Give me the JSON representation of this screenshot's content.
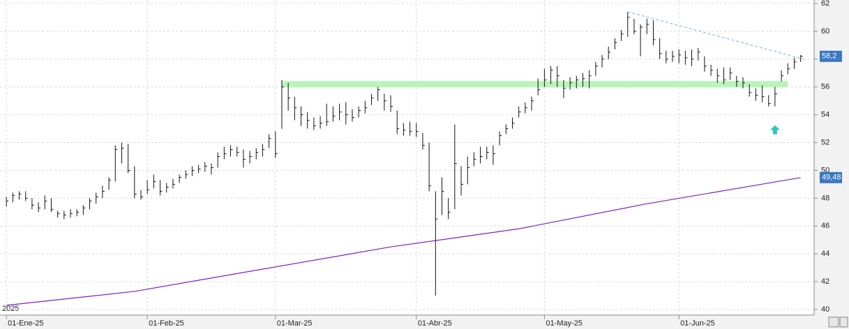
{
  "chart_data": {
    "type": "ohlc",
    "year_label": "2025",
    "xlim": [
      -1,
      126
    ],
    "xticks": [
      {
        "value": 0,
        "label": "01-Ene-25"
      },
      {
        "value": 22,
        "label": "01-Feb-25"
      },
      {
        "value": 42,
        "label": "01-Mar-25"
      },
      {
        "value": 64,
        "label": "01-Abr-25"
      },
      {
        "value": 84,
        "label": "01-May-25"
      },
      {
        "value": 105,
        "label": "01-Jun-25"
      }
    ],
    "ylim": [
      40,
      62
    ],
    "yticks": [
      40,
      42,
      44,
      46,
      48,
      50,
      52,
      54,
      56,
      58,
      60,
      62
    ],
    "grid": true,
    "color": "#111111",
    "high": [
      48.1,
      48.4,
      48.5,
      48.5,
      48.0,
      47.7,
      48.2,
      48.0,
      47.1,
      47.1,
      47.2,
      47.2,
      47.5,
      48.0,
      48.4,
      48.9,
      49.5,
      51.8,
      52.0,
      51.9,
      50.3,
      48.6,
      49.3,
      49.7,
      49.3,
      49.1,
      49.4,
      49.7,
      50.0,
      50.3,
      50.4,
      50.6,
      50.5,
      51.3,
      51.7,
      51.8,
      51.7,
      51.5,
      51.4,
      51.6,
      51.9,
      52.6,
      52.8,
      56.5,
      56.3,
      55.3,
      54.6,
      54.2,
      53.8,
      53.9,
      54.8,
      54.6,
      54.8,
      54.9,
      54.4,
      54.6,
      55.0,
      55.5,
      56.0,
      55.5,
      55.4,
      54.3,
      53.4,
      53.5,
      53.4,
      52.7,
      52.0,
      48.5,
      49.5,
      48.0,
      53.3,
      50.3,
      51.0,
      51.3,
      51.7,
      51.7,
      51.8,
      52.8,
      53.3,
      53.8,
      54.6,
      54.9,
      55.3,
      56.6,
      57.3,
      57.5,
      57.5,
      56.5,
      56.7,
      56.8,
      57.0,
      57.2,
      57.8,
      58.3,
      58.9,
      59.5,
      60.1,
      61.4,
      60.9,
      60.5,
      60.9,
      60.8,
      59.5,
      58.6,
      58.6,
      58.7,
      58.6,
      58.7,
      58.8,
      58.2,
      57.6,
      57.3,
      57.4,
      57.4,
      56.8,
      56.7,
      56.2,
      55.9,
      56.1,
      55.4,
      56.0,
      57.2,
      57.7,
      58.1,
      58.3
    ],
    "low": [
      47.4,
      47.7,
      47.9,
      47.8,
      47.2,
      47.0,
      47.2,
      47.0,
      46.6,
      46.5,
      46.6,
      46.7,
      46.8,
      47.2,
      47.6,
      48.0,
      48.6,
      49.2,
      50.5,
      49.8,
      48.0,
      47.9,
      48.3,
      48.7,
      48.2,
      48.4,
      48.7,
      49.1,
      49.4,
      49.6,
      49.8,
      49.9,
      49.7,
      50.2,
      50.8,
      51.0,
      51.0,
      50.2,
      50.5,
      50.8,
      51.0,
      51.6,
      50.9,
      53.0,
      54.3,
      53.6,
      53.2,
      53.0,
      52.9,
      53.0,
      53.2,
      53.5,
      53.6,
      53.3,
      53.5,
      53.8,
      54.1,
      54.7,
      55.0,
      54.3,
      54.2,
      52.6,
      52.5,
      52.5,
      52.4,
      51.5,
      48.5,
      41.0,
      46.8,
      46.5,
      47.2,
      48.2,
      49.0,
      50.3,
      50.5,
      50.8,
      50.4,
      51.8,
      52.6,
      53.0,
      53.8,
      54.1,
      54.3,
      55.4,
      56.0,
      56.2,
      56.0,
      55.2,
      55.8,
      55.9,
      56.0,
      55.9,
      56.8,
      57.4,
      58.0,
      58.7,
      59.3,
      59.6,
      59.8,
      58.2,
      59.8,
      59.0,
      58.0,
      57.7,
      57.8,
      57.7,
      57.6,
      57.5,
      57.9,
      57.1,
      56.8,
      56.3,
      56.2,
      56.5,
      56.0,
      55.9,
      55.3,
      55.0,
      54.9,
      54.6,
      54.6,
      56.4,
      56.9,
      57.3,
      57.8
    ],
    "close": [
      47.8,
      48.2,
      48.3,
      48.0,
      47.5,
      47.3,
      47.8,
      47.2,
      46.9,
      46.8,
      46.9,
      47.0,
      47.3,
      47.8,
      48.1,
      48.5,
      49.3,
      51.5,
      51.6,
      50.0,
      48.3,
      48.1,
      48.6,
      49.2,
      48.5,
      48.8,
      49.0,
      49.5,
      49.7,
      50.0,
      50.1,
      50.3,
      50.2,
      51.0,
      51.2,
      51.5,
      51.3,
      50.8,
      51.0,
      51.3,
      51.5,
      52.3,
      51.2,
      56.0,
      55.2,
      54.5,
      54.0,
      53.6,
      53.2,
      53.4,
      53.5,
      53.9,
      54.2,
      54.0,
      53.8,
      54.3,
      54.5,
      55.2,
      55.8,
      55.0,
      54.6,
      53.0,
      52.9,
      52.8,
      52.8,
      51.8,
      48.9,
      46.5,
      48.5,
      47.0,
      50.5,
      49.0,
      50.2,
      50.8,
      51.0,
      51.3,
      51.2,
      52.5,
      53.0,
      53.4,
      54.2,
      54.5,
      55.0,
      55.8,
      56.5,
      57.2,
      56.8,
      55.9,
      56.3,
      56.5,
      56.6,
      56.8,
      57.5,
      58.0,
      58.5,
      59.2,
      59.8,
      61.0,
      60.0,
      60.3,
      60.5,
      59.4,
      58.4,
      58.0,
      58.2,
      58.3,
      58.1,
      58.0,
      58.5,
      57.5,
      57.2,
      56.8,
      56.5,
      57.0,
      56.4,
      56.3,
      55.6,
      55.4,
      55.3,
      54.8,
      55.5,
      56.8,
      57.3,
      57.8,
      58.2
    ],
    "moving_average": {
      "color": "#7a1fc9",
      "x": [
        0,
        20,
        40,
        60,
        80,
        100,
        124
      ],
      "values": [
        40.3,
        41.3,
        42.9,
        44.5,
        45.8,
        47.6,
        49.48
      ]
    },
    "support_band": {
      "color": "#b9f5b9",
      "level": 56.2,
      "from": 43,
      "to": 122
    },
    "trendline": {
      "color": "#8fbbe0",
      "x": [
        97,
        124.5
      ],
      "values": [
        61.4,
        58.0
      ]
    },
    "arrow": {
      "color": "#2ec4c0",
      "x": 120,
      "y": 52.9
    },
    "last_value_labels": [
      {
        "value": 58.2,
        "label": "58,2",
        "color": "#3a78c0"
      },
      {
        "value": 49.48,
        "label": "49,48",
        "color": "#3a78c0"
      }
    ]
  }
}
